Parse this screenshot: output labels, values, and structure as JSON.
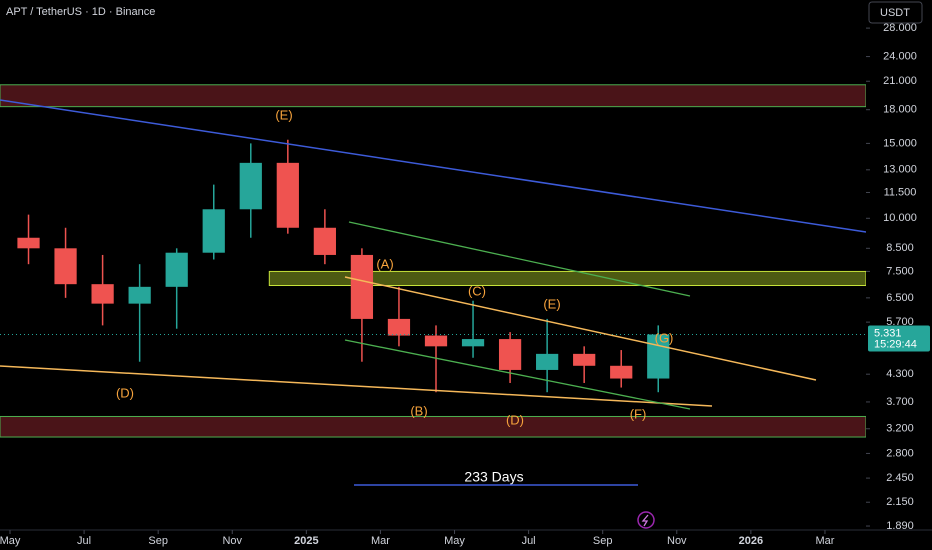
{
  "chart_data": {
    "type": "candlestick",
    "title": "APT / TetherUS · 1D · Binance",
    "currency": "USDT",
    "x": [
      "2024-05",
      "2024-06",
      "2024-07",
      "2024-08",
      "2024-09",
      "2024-10",
      "2024-11",
      "2024-12",
      "2025-01",
      "2025-02",
      "2025-03",
      "2025-04",
      "2025-05",
      "2025-06",
      "2025-07",
      "2025-08",
      "2025-09",
      "2025-10"
    ],
    "open": [
      9.0,
      8.5,
      7.0,
      6.3,
      6.9,
      8.3,
      10.5,
      13.5,
      9.5,
      8.2,
      5.8,
      5.3,
      5.0,
      5.2,
      4.4,
      4.8,
      4.5,
      4.2
    ],
    "high": [
      10.2,
      9.5,
      8.2,
      7.8,
      8.5,
      12.0,
      15.0,
      15.3,
      10.5,
      8.5,
      6.9,
      5.6,
      6.4,
      5.4,
      5.8,
      5.0,
      4.9,
      5.6
    ],
    "low": [
      7.8,
      6.5,
      5.6,
      4.6,
      5.5,
      8.0,
      9.0,
      9.2,
      7.8,
      4.6,
      5.0,
      3.9,
      4.7,
      4.1,
      3.9,
      4.1,
      4.0,
      3.9
    ],
    "close": [
      8.5,
      7.0,
      6.3,
      6.9,
      8.3,
      10.5,
      13.5,
      9.5,
      8.2,
      5.8,
      5.3,
      5.0,
      5.2,
      4.4,
      4.8,
      4.5,
      4.2,
      5.331
    ],
    "up_color": "#26a69a",
    "down_color": "#ef5350",
    "log_scale": true,
    "ylim": [
      1.66,
      32.6
    ],
    "yticks": [
      {
        "value": 28,
        "label": "28.000"
      },
      {
        "value": 24,
        "label": "24.000"
      },
      {
        "value": 21,
        "label": "21.000"
      },
      {
        "value": 18,
        "label": "18.000"
      },
      {
        "value": 15,
        "label": "15.000"
      },
      {
        "value": 13,
        "label": "13.000"
      },
      {
        "value": 11.5,
        "label": "11.500"
      },
      {
        "value": 10,
        "label": "10.000"
      },
      {
        "value": 8.5,
        "label": "8.500"
      },
      {
        "value": 7.5,
        "label": "7.500"
      },
      {
        "value": 6.5,
        "label": "6.500"
      },
      {
        "value": 5.7,
        "label": "5.700"
      },
      {
        "value": 4.3,
        "label": "4.300"
      },
      {
        "value": 3.7,
        "label": "3.700"
      },
      {
        "value": 3.2,
        "label": "3.200"
      },
      {
        "value": 2.8,
        "label": "2.800"
      },
      {
        "value": 2.45,
        "label": "2.450"
      },
      {
        "value": 2.15,
        "label": "2.150"
      },
      {
        "value": 1.89,
        "label": "1.890"
      }
    ],
    "xlim": [
      "2024-05",
      "2026-04"
    ],
    "xticks": [
      {
        "value": "2024-05",
        "label": "May"
      },
      {
        "value": "2024-07",
        "label": "Jul"
      },
      {
        "value": "2024-09",
        "label": "Sep"
      },
      {
        "value": "2024-11",
        "label": "Nov"
      },
      {
        "value": "2025-01",
        "label": "2025"
      },
      {
        "value": "2025-03",
        "label": "Mar"
      },
      {
        "value": "2025-05",
        "label": "May"
      },
      {
        "value": "2025-07",
        "label": "Jul"
      },
      {
        "value": "2025-09",
        "label": "Sep"
      },
      {
        "value": "2025-11",
        "label": "Nov"
      },
      {
        "value": "2026-01",
        "label": "2026"
      },
      {
        "value": "2026-03",
        "label": "Mar"
      }
    ],
    "zones": [
      {
        "low": 18.3,
        "high": 20.6,
        "color": "#4a1418"
      },
      {
        "low": 3.06,
        "high": 3.42,
        "color": "#4a1418"
      },
      {
        "low": 6.95,
        "high": 7.5,
        "color": "#4d5a12",
        "start": "2024-12"
      }
    ],
    "last_price": 5.331,
    "countdown": "15:29:44",
    "annotations": [
      "(E)",
      "(A)",
      "(C)",
      "(E)",
      "(G)",
      "(D)",
      "(B)",
      "(D)",
      "(F)"
    ],
    "duration_label": "233 Days"
  }
}
